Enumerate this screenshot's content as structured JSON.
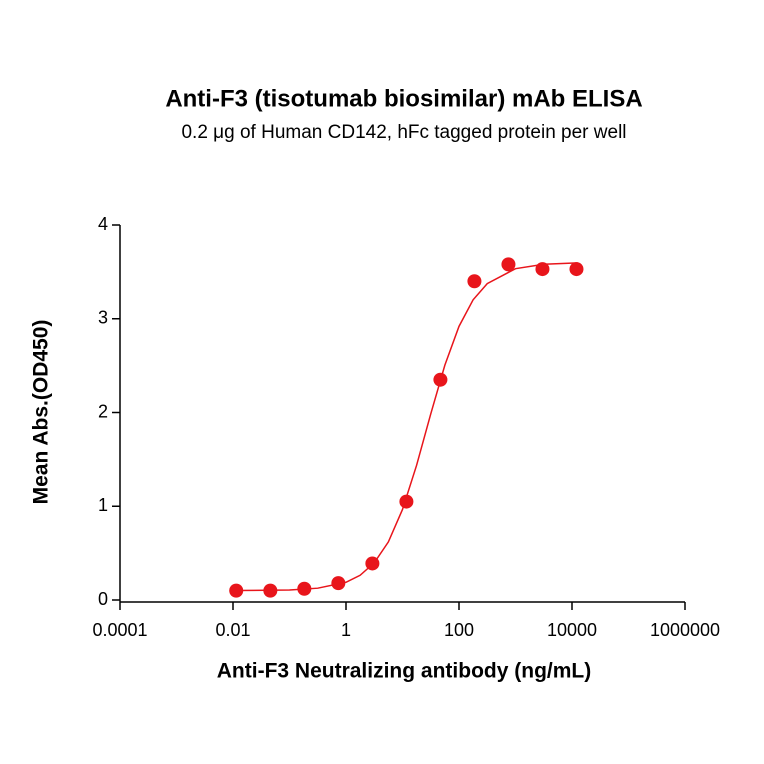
{
  "chart_data": {
    "type": "scatter",
    "title": "Anti-F3 (tisotumab biosimilar) mAb ELISA",
    "subtitle": "0.2 μg of Human CD142, hFc tagged protein per well",
    "x_label": "Anti-F3 Neutralizing antibody (ng/mL)",
    "y_label": "Mean Abs.(OD450)",
    "x_scale": "log",
    "x": [
      0.0114,
      0.0458,
      0.183,
      0.732,
      2.93,
      11.72,
      46.875,
      187.5,
      750,
      3000,
      12000
    ],
    "values": [
      0.1,
      0.1,
      0.12,
      0.18,
      0.39,
      1.05,
      2.35,
      3.4,
      3.58,
      3.53,
      3.53
    ],
    "color": "#e8151b",
    "fit_curve": {
      "x": [
        0.0112,
        0.1,
        0.316,
        1,
        1.778,
        3.162,
        5.623,
        10,
        17.78,
        31.62,
        56.23,
        100,
        177.8,
        316.2,
        1000,
        3162,
        12589
      ],
      "y": [
        0.1007,
        0.107,
        0.126,
        0.189,
        0.264,
        0.397,
        0.62,
        0.966,
        1.438,
        1.985,
        2.505,
        2.919,
        3.202,
        3.375,
        3.534,
        3.581,
        3.596
      ],
      "color": "#e8151b"
    },
    "xlim": [
      0.0001,
      1000000
    ],
    "xticks": [
      0.0001,
      0.01,
      1,
      100,
      10000,
      1000000
    ],
    "ylim": [
      0,
      4
    ],
    "yticks": [
      0,
      1,
      2,
      3,
      4
    ],
    "grid": false
  }
}
